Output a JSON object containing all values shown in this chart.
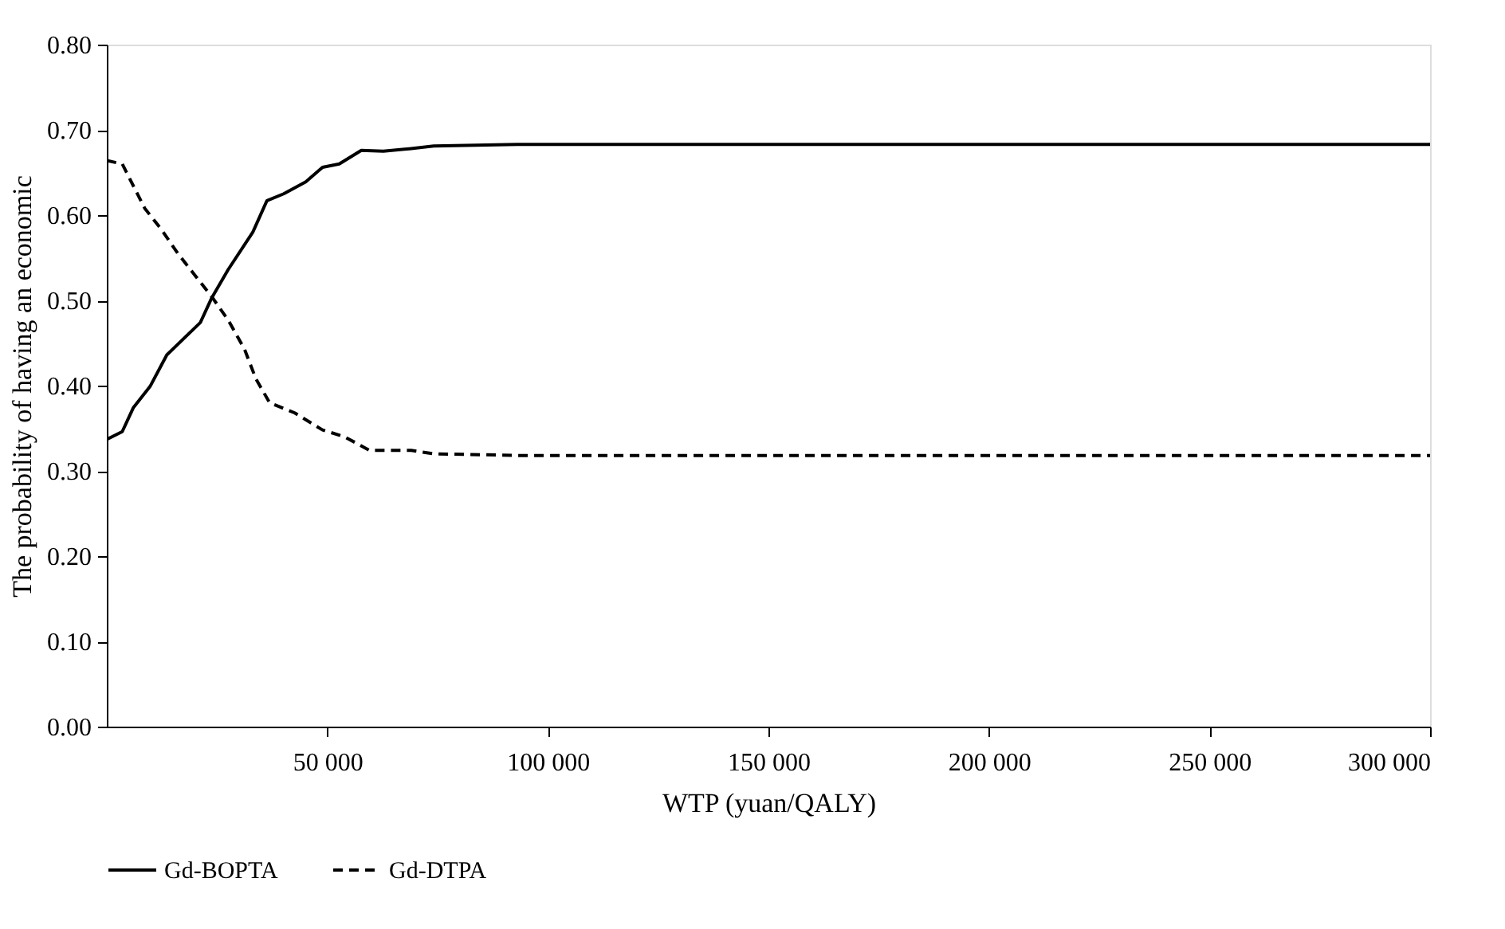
{
  "chart_data": {
    "type": "line",
    "xlabel": "WTP (yuan/QALY)",
    "ylabel": "The probability of having an economic",
    "xlim": [
      0,
      300000
    ],
    "xticks": [
      {
        "value": 50000,
        "label": "50 000"
      },
      {
        "value": 100000,
        "label": "100 000"
      },
      {
        "value": 150000,
        "label": "150 000"
      },
      {
        "value": 200000,
        "label": "200 000"
      },
      {
        "value": 250000,
        "label": "250 000"
      },
      {
        "value": 300000,
        "label": "300 000"
      }
    ],
    "ylim": [
      0,
      0.8
    ],
    "yticks": [
      {
        "value": 0,
        "label": "0.00"
      },
      {
        "value": 0.1,
        "label": "0.10"
      },
      {
        "value": 0.2,
        "label": "0.20"
      },
      {
        "value": 0.3,
        "label": "0.30"
      },
      {
        "value": 0.4,
        "label": "0.40"
      },
      {
        "value": 0.5,
        "label": "0.50"
      },
      {
        "value": 0.6,
        "label": "0.60"
      },
      {
        "value": 0.7,
        "label": "0.70"
      },
      {
        "value": 0.8,
        "label": "0.80"
      }
    ],
    "grid": false,
    "legend": "bottom",
    "marker": "none",
    "series": [
      {
        "name": "Gd-BOPTA",
        "color": "#000000",
        "line_style": "solid",
        "x": [
          0,
          3500,
          6000,
          9800,
          13600,
          17400,
          21200,
          23700,
          27500,
          33100,
          36300,
          40100,
          45100,
          48900,
          52700,
          57700,
          62700,
          69000,
          74100,
          93000,
          300000
        ],
        "values": [
          0.337,
          0.346,
          0.374,
          0.399,
          0.436,
          0.455,
          0.474,
          0.502,
          0.536,
          0.58,
          0.617,
          0.625,
          0.639,
          0.656,
          0.66,
          0.676,
          0.675,
          0.678,
          0.681,
          0.683,
          0.683
        ]
      },
      {
        "name": "Gd-DTPA",
        "color": "#000000",
        "line_style": "dashed",
        "x": [
          0,
          3500,
          8600,
          12400,
          16100,
          19900,
          23700,
          27500,
          31200,
          33800,
          36900,
          42600,
          48900,
          53900,
          59600,
          64000,
          69000,
          74100,
          94200,
          300000
        ],
        "values": [
          0.664,
          0.66,
          0.608,
          0.583,
          0.555,
          0.53,
          0.505,
          0.477,
          0.443,
          0.408,
          0.38,
          0.368,
          0.348,
          0.34,
          0.324,
          0.324,
          0.324,
          0.32,
          0.318,
          0.318
        ]
      }
    ]
  }
}
